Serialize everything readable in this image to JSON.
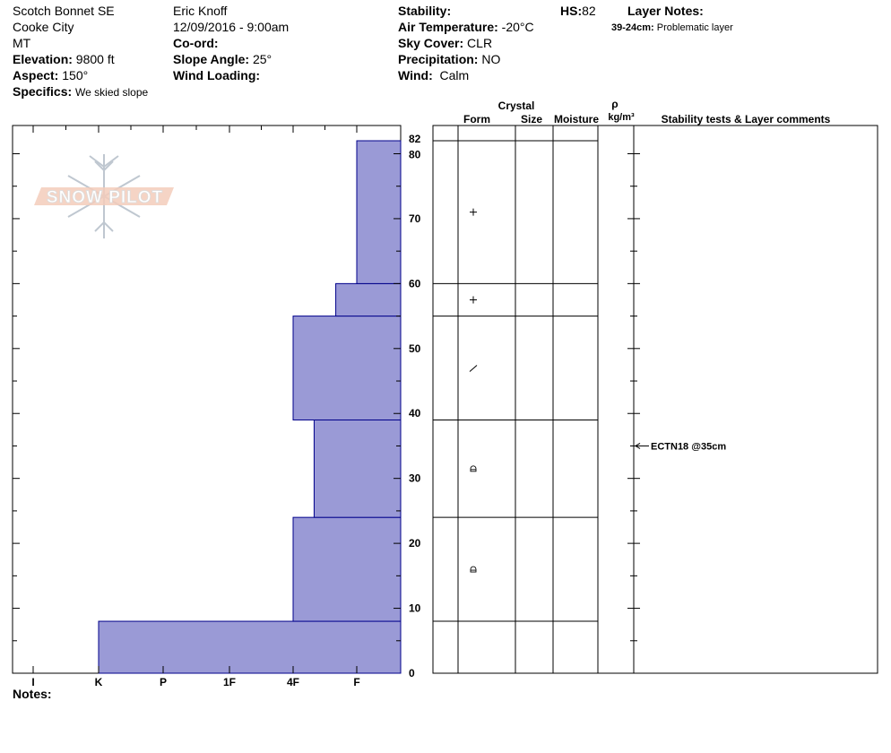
{
  "header": {
    "location": "Scotch Bonnet SE",
    "city": "Cooke City",
    "state": "MT",
    "elevation_label": "Elevation:",
    "elevation_value": "9800 ft",
    "aspect_label": "Aspect:",
    "aspect_value": "150°",
    "specifics_label": "Specifics:",
    "specifics_value": "We skied slope",
    "observer": "Eric Knoff",
    "datetime": "12/09/2016 - 9:00am",
    "coord_label": "Co-ord:",
    "slope_label": "Slope Angle:",
    "slope_value": "25°",
    "wind_loading_label": "Wind Loading:",
    "stability_label": "Stability:",
    "air_temp_label": "Air Temperature:",
    "air_temp_value": "-20°C",
    "sky_label": "Sky Cover:",
    "sky_value": "CLR",
    "precip_label": "Precipitation:",
    "precip_value": "NO",
    "wind_label": "Wind:",
    "wind_value": "Calm",
    "hs_label": "HS:",
    "hs_value": "82",
    "layer_notes_label": "Layer Notes:",
    "layer_note_range": "39-24cm:",
    "layer_note_text": "Problematic layer",
    "notes_label": "Notes:"
  },
  "logo_text": "SNOW PILOT",
  "table_headers": {
    "crystal": "Crystal",
    "form": "Form",
    "size": "Size",
    "moisture": "Moisture",
    "rho": "ρ",
    "density_unit": "kg/m³",
    "stability": "Stability tests & Layer comments"
  },
  "stability_comment": "ECTN18 @35cm",
  "colors": {
    "hardness_fill": "#9a9ad6",
    "hardness_stroke": "#00008b"
  },
  "chart_data": {
    "type": "bar",
    "orientation": "horizontal-step",
    "x_categories": [
      "I",
      "K",
      "P",
      "1F",
      "4F",
      "F"
    ],
    "y_range": [
      0,
      82
    ],
    "y_ticks": [
      0,
      10,
      20,
      30,
      40,
      50,
      60,
      70,
      80,
      82
    ],
    "hs": 82,
    "layers": [
      {
        "bottom": 0,
        "top": 8,
        "hardness": "K",
        "hardness_value": 1.0,
        "form": ""
      },
      {
        "bottom": 8,
        "top": 24,
        "hardness": "4F",
        "hardness_value": 4.0,
        "form": "rounded"
      },
      {
        "bottom": 24,
        "top": 39,
        "hardness": "4F-",
        "hardness_value": 4.33,
        "form": "rounded"
      },
      {
        "bottom": 39,
        "top": 55,
        "hardness": "4F",
        "hardness_value": 4.0,
        "form": "decomposing"
      },
      {
        "bottom": 55,
        "top": 60,
        "hardness": "F+",
        "hardness_value": 4.67,
        "form": "new-snow"
      },
      {
        "bottom": 60,
        "top": 82,
        "hardness": "F",
        "hardness_value": 5.0,
        "form": "new-snow"
      }
    ],
    "stability_tests": [
      {
        "depth": 35,
        "label": "ECTN18 @35cm"
      }
    ]
  }
}
